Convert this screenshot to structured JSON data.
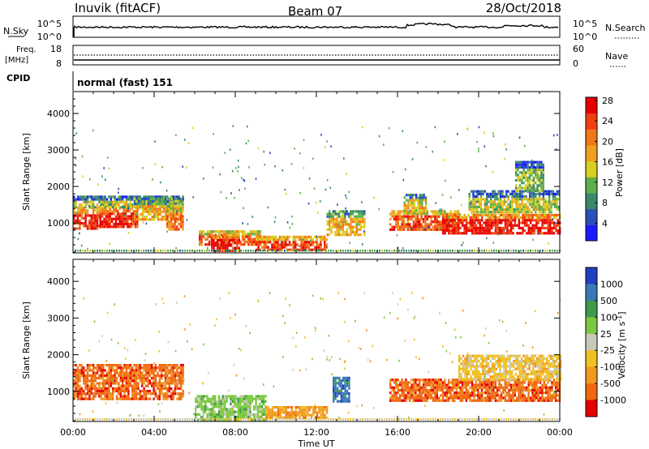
{
  "header": {
    "station": "Inuvik (fitACF)",
    "beam": "Beam 07",
    "date": "28/Oct/2018"
  },
  "top_panels": {
    "nsky_label": "N.Sky",
    "nsearch_label": "N.Search",
    "nsky_ticks": [
      "10^5",
      "10^0"
    ],
    "nsearch_ticks": [
      "10^5",
      "10^0"
    ],
    "freq_label_line1": "Freq.",
    "freq_label_line2": "[MHz]",
    "freq_ticks": [
      "18",
      "8"
    ],
    "nave_label": "Nave",
    "nave_ticks": [
      "60",
      "0"
    ],
    "cpid_label": "CPID",
    "cpid_text": "normal (fast) 151"
  },
  "colors": {
    "nsky_line": "#000000",
    "freq_line": "#000000"
  },
  "chart_data": [
    {
      "type": "heatmap",
      "title": "",
      "xlabel": "",
      "ylabel": "Slant Range [km]",
      "x_range_hours": [
        0,
        24
      ],
      "ylim": [
        180,
        4600
      ],
      "yticks": [
        1000,
        2000,
        3000,
        4000
      ],
      "colorbar": {
        "label": "Power [dB]",
        "ticks": [
          "4",
          "8",
          "12",
          "16",
          "20",
          "24",
          "28"
        ],
        "range": [
          0,
          30
        ],
        "colors": [
          "#1a1aff",
          "#2b4fb8",
          "#3a8a6a",
          "#5fb04a",
          "#d8d020",
          "#f0a020",
          "#f07818",
          "#f04010",
          "#e80000"
        ]
      },
      "echo_regions": [
        {
          "t0": 0.0,
          "t1": 1.3,
          "r0": 850,
          "r1": 1450,
          "level": 26
        },
        {
          "t0": 1.3,
          "t1": 3.2,
          "r0": 900,
          "r1": 1500,
          "level": 28
        },
        {
          "t0": 0.0,
          "t1": 5.4,
          "r0": 1450,
          "r1": 1750,
          "level": 14
        },
        {
          "t0": 3.0,
          "t1": 5.4,
          "r0": 1100,
          "r1": 1700,
          "level": 18
        },
        {
          "t0": 4.6,
          "t1": 5.4,
          "r0": 800,
          "r1": 1500,
          "level": 22
        },
        {
          "t0": 6.2,
          "t1": 9.2,
          "r0": 400,
          "r1": 800,
          "level": 24
        },
        {
          "t0": 6.8,
          "t1": 8.2,
          "r0": 250,
          "r1": 700,
          "level": 28
        },
        {
          "t0": 9.0,
          "t1": 12.5,
          "r0": 250,
          "r1": 650,
          "level": 26
        },
        {
          "t0": 12.5,
          "t1": 14.4,
          "r0": 700,
          "r1": 1350,
          "level": 18
        },
        {
          "t0": 15.6,
          "t1": 19.0,
          "r0": 800,
          "r1": 1350,
          "level": 24
        },
        {
          "t0": 16.3,
          "t1": 17.4,
          "r0": 1300,
          "r1": 1800,
          "level": 16
        },
        {
          "t0": 18.2,
          "t1": 24.0,
          "r0": 750,
          "r1": 1250,
          "level": 28
        },
        {
          "t0": 19.5,
          "t1": 24.0,
          "r0": 1300,
          "r1": 1900,
          "level": 14
        },
        {
          "t0": 21.8,
          "t1": 23.2,
          "r0": 1900,
          "r1": 2700,
          "level": 12
        }
      ]
    },
    {
      "type": "heatmap",
      "title": "",
      "xlabel": "Time UT",
      "ylabel": "Slant Range [km]",
      "x_range_hours": [
        0,
        24
      ],
      "xticks": [
        "00:00",
        "04:00",
        "08:00",
        "12:00",
        "16:00",
        "20:00",
        "00:00"
      ],
      "ylim": [
        180,
        4600
      ],
      "yticks": [
        1000,
        2000,
        3000,
        4000
      ],
      "colorbar": {
        "label": "Velocity [m s^-1]",
        "ticks": [
          "1000",
          "500",
          "100",
          "25",
          "-25",
          "-100",
          "-500",
          "-1000"
        ],
        "colors": [
          "#2040c0",
          "#3a78b8",
          "#3f9a4a",
          "#7cc840",
          "#c8c8b8",
          "#f0c020",
          "#f09820",
          "#f06810",
          "#e80000"
        ]
      },
      "echo_regions": [
        {
          "t0": 0.0,
          "t1": 5.4,
          "r0": 800,
          "r1": 1750,
          "velocity": "-500"
        },
        {
          "t0": 6.0,
          "t1": 9.5,
          "r0": 250,
          "r1": 900,
          "velocity": "100"
        },
        {
          "t0": 9.5,
          "t1": 12.5,
          "r0": 250,
          "r1": 600,
          "velocity": "-100"
        },
        {
          "t0": 12.8,
          "t1": 13.6,
          "r0": 700,
          "r1": 1400,
          "velocity": "1000"
        },
        {
          "t0": 15.6,
          "t1": 24.0,
          "r0": 750,
          "r1": 1350,
          "velocity": "-500"
        },
        {
          "t0": 19.0,
          "t1": 24.0,
          "r0": 1300,
          "r1": 2000,
          "velocity": "-25"
        }
      ]
    }
  ]
}
